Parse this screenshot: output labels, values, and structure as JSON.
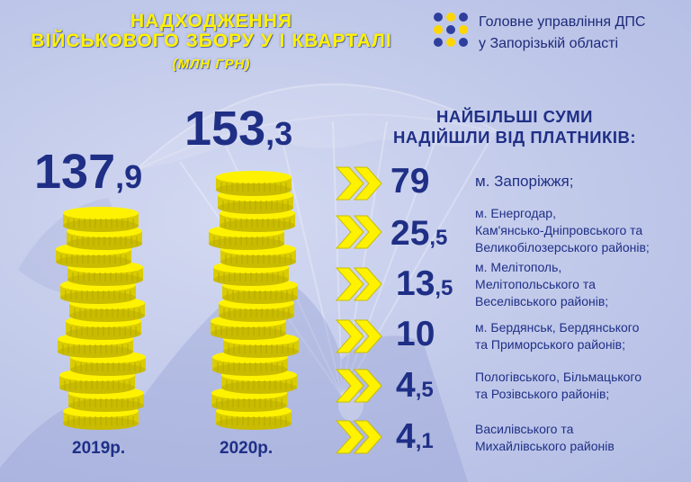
{
  "header": {
    "title_line1": "НАДХОДЖЕННЯ",
    "title_line2": "ВІЙСЬКОВОГО ЗБОРУ У І КВАРТАЛІ",
    "subtitle": "(МЛН ГРН)"
  },
  "brand": {
    "line1": "Головне управління ДПС",
    "line2": "у Запорізькій області"
  },
  "stats": [
    {
      "main": "137",
      "decimal": ",9",
      "year": "2019р."
    },
    {
      "main": "153",
      "decimal": ",3",
      "year": "2020р."
    }
  ],
  "payers": {
    "heading_line1": "НАЙБІЛЬШІ СУМИ",
    "heading_line2": "НАДІЙШЛИ ВІД ПЛАТНИКІВ:",
    "rows": [
      {
        "main": "79",
        "decimal": "",
        "lines": [
          "м. Запоріжжя;"
        ]
      },
      {
        "main": "25",
        "decimal": ",5",
        "lines": [
          "м. Енергодар,",
          "Кам'янсько-Дніпровського та",
          "Великобілозерського районів;"
        ]
      },
      {
        "main": "13",
        "decimal": ",5",
        "lines": [
          "м. Мелітополь,",
          "Мелітопольського та",
          "Веселівського районів;"
        ]
      },
      {
        "main": "10",
        "decimal": "",
        "lines": [
          "м. Бердянськ, Бердянського",
          "та Приморського районів;"
        ]
      },
      {
        "main": "4",
        "decimal": ",5",
        "lines": [
          "Пологівського, Більмацького",
          "та Розівського районів;"
        ]
      },
      {
        "main": "4",
        "decimal": ",1",
        "lines": [
          "Василівського та",
          "Михайлівського районів"
        ]
      }
    ]
  },
  "colors": {
    "accent_yellow": "#fff200",
    "text_navy": "#1f2f86",
    "logo_dot_blue": "#2f3f9e",
    "logo_dot_yellow": "#ffd600"
  },
  "icons": [
    "parachute-background",
    "coin-stack-icon",
    "double-chevron-icon",
    "brand-dots-logo-icon"
  ]
}
